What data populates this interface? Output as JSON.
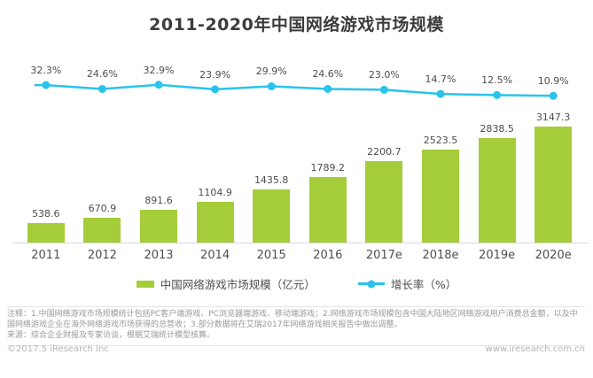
{
  "title": "2011-2020年中国网络游戏市场规模",
  "chart_data": {
    "type": "bar",
    "title": "2011-2020年中国网络游戏市场规模",
    "categories": [
      "2011",
      "2012",
      "2013",
      "2014",
      "2015",
      "2016",
      "2017e",
      "2018e",
      "2019e",
      "2020e"
    ],
    "series": [
      {
        "name": "中国网络游戏市场规模（亿元）",
        "type": "bar",
        "color": "#a5cd3a",
        "values": [
          538.6,
          670.9,
          891.6,
          1104.9,
          1435.8,
          1789.2,
          2200.7,
          2523.5,
          2838.5,
          3147.3
        ]
      },
      {
        "name": "增长率（%）",
        "type": "line",
        "color": "#29c3ec",
        "values": [
          32.3,
          24.6,
          32.9,
          23.9,
          29.9,
          24.6,
          23.0,
          14.7,
          12.5,
          10.9
        ]
      }
    ],
    "xlabel": "",
    "ylabel": "",
    "value_labels": "shown above bars and points",
    "legend_position": "bottom",
    "grid": "off"
  },
  "notes": {
    "annotation": "注释：1.中国网络游戏市场规模统计包括PC客户端游戏、PC浏览器端游戏、移动端游戏；2.网络游戏市场规模包含中国大陆地区网络游戏用户消费总金额，以及中国网络游戏企业在海外网络游戏市场获得的总营收；3.部分数据将在艾瑞2017年网络游戏相关报告中做出调整。",
    "source": "来源：综合企业财报及专家访谈，根据艾瑞统计模型核算。"
  },
  "footer": {
    "copyright": "©2017.5 iResearch Inc",
    "website": "www.iresearch.com.cn"
  }
}
